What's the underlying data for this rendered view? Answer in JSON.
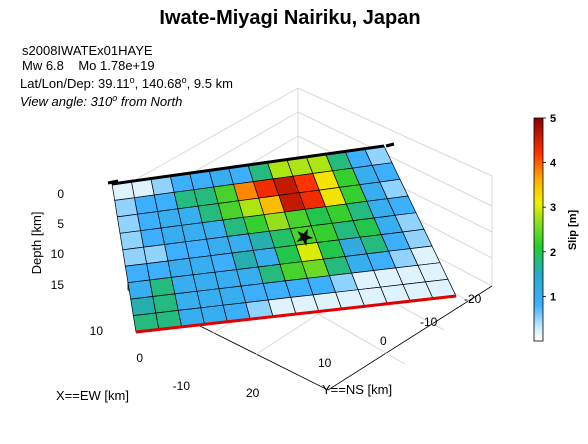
{
  "chart_data": {
    "type": "heatmap",
    "title": "Iwate-Miyagi Nairiku, Japan",
    "info": {
      "event_id": "s2008IWATEx01HAYE",
      "magnitude": "Mw 6.8    Mo 1.78e+19",
      "location": "Lat/Lon/Dep: 39.11",
      "lat": "39.11",
      "lon": "140.68",
      "depth": "9.5 km",
      "view_angle_prefix": "View angle: 310",
      "view_angle_suffix": "from North",
      "degree_mark": "o"
    },
    "axes": {
      "zlabel": "Depth [km]",
      "xlabel": "X==EW [km]",
      "ylabel": "Y==NS [km]",
      "z_ticks": [
        "0",
        "5",
        "10",
        "15"
      ],
      "x_ticks": [
        "10",
        "0",
        "-10"
      ],
      "y_ticks": [
        "20",
        "10",
        "0",
        "-10",
        "-20"
      ]
    },
    "colorbar": {
      "label": "Slip [m]",
      "range": [
        0,
        5
      ],
      "ticks": [
        "1",
        "2",
        "3",
        "4",
        "5"
      ]
    },
    "grid_size": {
      "cols": 14,
      "rows": 9
    },
    "slip": [
      [
        0.2,
        0.2,
        0.5,
        0.8,
        0.8,
        1.0,
        0.8,
        1.8,
        2.8,
        2.8,
        2.8,
        1.8,
        0.8,
        0.5
      ],
      [
        0.5,
        0.8,
        0.8,
        1.8,
        1.8,
        2.3,
        3.8,
        4.3,
        4.6,
        4.2,
        3.2,
        2.2,
        1.0,
        0.8
      ],
      [
        0.5,
        0.8,
        1.0,
        1.0,
        1.8,
        2.3,
        2.8,
        3.5,
        4.6,
        4.3,
        3.2,
        2.2,
        1.0,
        0.5
      ],
      [
        0.5,
        0.8,
        1.0,
        1.0,
        1.0,
        1.8,
        2.2,
        2.7,
        2.3,
        2.0,
        2.2,
        1.8,
        1.0,
        0.8
      ],
      [
        0.5,
        0.5,
        0.8,
        0.8,
        1.0,
        1.0,
        1.6,
        1.9,
        2.3,
        2.2,
        1.8,
        2.0,
        1.0,
        0.5
      ],
      [
        0.8,
        0.8,
        1.0,
        1.0,
        0.8,
        1.6,
        1.0,
        2.0,
        3.0,
        2.0,
        1.2,
        1.8,
        0.8,
        0.5
      ],
      [
        1.0,
        1.8,
        1.0,
        1.0,
        1.0,
        1.0,
        1.8,
        2.3,
        2.5,
        1.8,
        1.0,
        0.8,
        0.5,
        0.2
      ],
      [
        1.6,
        1.8,
        1.0,
        1.0,
        1.0,
        0.8,
        0.8,
        0.8,
        0.8,
        0.5,
        0.2,
        0.2,
        0.2,
        0.2
      ],
      [
        1.8,
        1.8,
        1.0,
        1.0,
        0.8,
        0.5,
        0.2,
        0.2,
        0.2,
        0.2,
        0.2,
        0.2,
        0.2,
        0.2
      ]
    ],
    "hypocenter": {
      "col": 8.5,
      "row": 4.6
    },
    "colors": {
      "top_edge": "#000000",
      "bottom_edge": "#e00000",
      "grid_line": "#000000",
      "axis_grid": "#dddddd"
    }
  }
}
